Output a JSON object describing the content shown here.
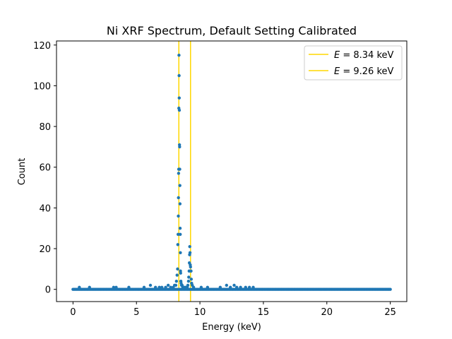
{
  "chart_data": {
    "type": "scatter",
    "title": "Ni XRF Spectrum, Default Setting Calibrated",
    "xlabel": "Energy (keV)",
    "ylabel": "Count",
    "xlim": [
      -1.3,
      26.3
    ],
    "ylim": [
      -6,
      122
    ],
    "xticks": [
      0,
      5,
      10,
      15,
      20,
      25
    ],
    "yticks": [
      0,
      20,
      40,
      60,
      80,
      100,
      120
    ],
    "grid": false,
    "legend_placement": "upper right",
    "colors": {
      "points": "#1f77b4",
      "vlines": "#ffd700",
      "axes": "#000000"
    },
    "vlines": [
      {
        "x": 8.34,
        "label": "E = 8.34 keV",
        "label_var": "E",
        "label_rest": " = 8.34 keV"
      },
      {
        "x": 9.26,
        "label": "E = 9.26 keV",
        "label_var": "E",
        "label_rest": " = 9.26 keV"
      }
    ],
    "series": [
      {
        "baseline": {
          "x_start": 0,
          "x_end": 25,
          "step": 0.1,
          "y": 0
        },
        "points": [
          [
            0.5,
            1
          ],
          [
            1.3,
            1
          ],
          [
            3.2,
            1
          ],
          [
            3.4,
            1
          ],
          [
            4.4,
            1
          ],
          [
            5.6,
            1
          ],
          [
            6.1,
            2
          ],
          [
            6.5,
            1
          ],
          [
            6.8,
            1
          ],
          [
            7.0,
            1
          ],
          [
            7.3,
            1
          ],
          [
            7.5,
            2
          ],
          [
            7.7,
            1
          ],
          [
            7.9,
            1
          ],
          [
            8.0,
            2
          ],
          [
            8.1,
            2
          ],
          [
            8.15,
            4
          ],
          [
            8.2,
            7
          ],
          [
            8.24,
            10
          ],
          [
            8.26,
            22
          ],
          [
            8.28,
            27
          ],
          [
            8.3,
            36
          ],
          [
            8.31,
            45
          ],
          [
            8.32,
            57
          ],
          [
            8.33,
            59
          ],
          [
            8.34,
            89
          ],
          [
            8.35,
            115
          ],
          [
            8.36,
            105
          ],
          [
            8.37,
            94
          ],
          [
            8.38,
            88
          ],
          [
            8.39,
            71
          ],
          [
            8.4,
            70
          ],
          [
            8.41,
            59
          ],
          [
            8.42,
            51
          ],
          [
            8.43,
            42
          ],
          [
            8.44,
            30
          ],
          [
            8.45,
            27
          ],
          [
            8.46,
            18
          ],
          [
            8.47,
            9
          ],
          [
            8.48,
            8
          ],
          [
            8.5,
            4
          ],
          [
            8.52,
            3
          ],
          [
            8.55,
            2
          ],
          [
            8.6,
            2
          ],
          [
            8.65,
            1
          ],
          [
            8.7,
            1
          ],
          [
            8.8,
            1
          ],
          [
            8.9,
            1
          ],
          [
            9.0,
            1
          ],
          [
            9.05,
            2
          ],
          [
            9.1,
            4
          ],
          [
            9.12,
            6
          ],
          [
            9.15,
            9
          ],
          [
            9.17,
            13
          ],
          [
            9.19,
            17
          ],
          [
            9.2,
            21
          ],
          [
            9.22,
            18
          ],
          [
            9.24,
            12
          ],
          [
            9.26,
            11
          ],
          [
            9.28,
            9
          ],
          [
            9.3,
            9
          ],
          [
            9.32,
            5
          ],
          [
            9.35,
            3
          ],
          [
            9.4,
            2
          ],
          [
            9.5,
            1
          ],
          [
            10.1,
            1
          ],
          [
            10.6,
            1
          ],
          [
            11.6,
            1
          ],
          [
            12.1,
            2
          ],
          [
            12.4,
            1
          ],
          [
            12.7,
            2
          ],
          [
            12.9,
            1
          ],
          [
            13.2,
            1
          ],
          [
            13.6,
            1
          ],
          [
            13.9,
            1
          ],
          [
            14.2,
            1
          ]
        ]
      }
    ]
  }
}
